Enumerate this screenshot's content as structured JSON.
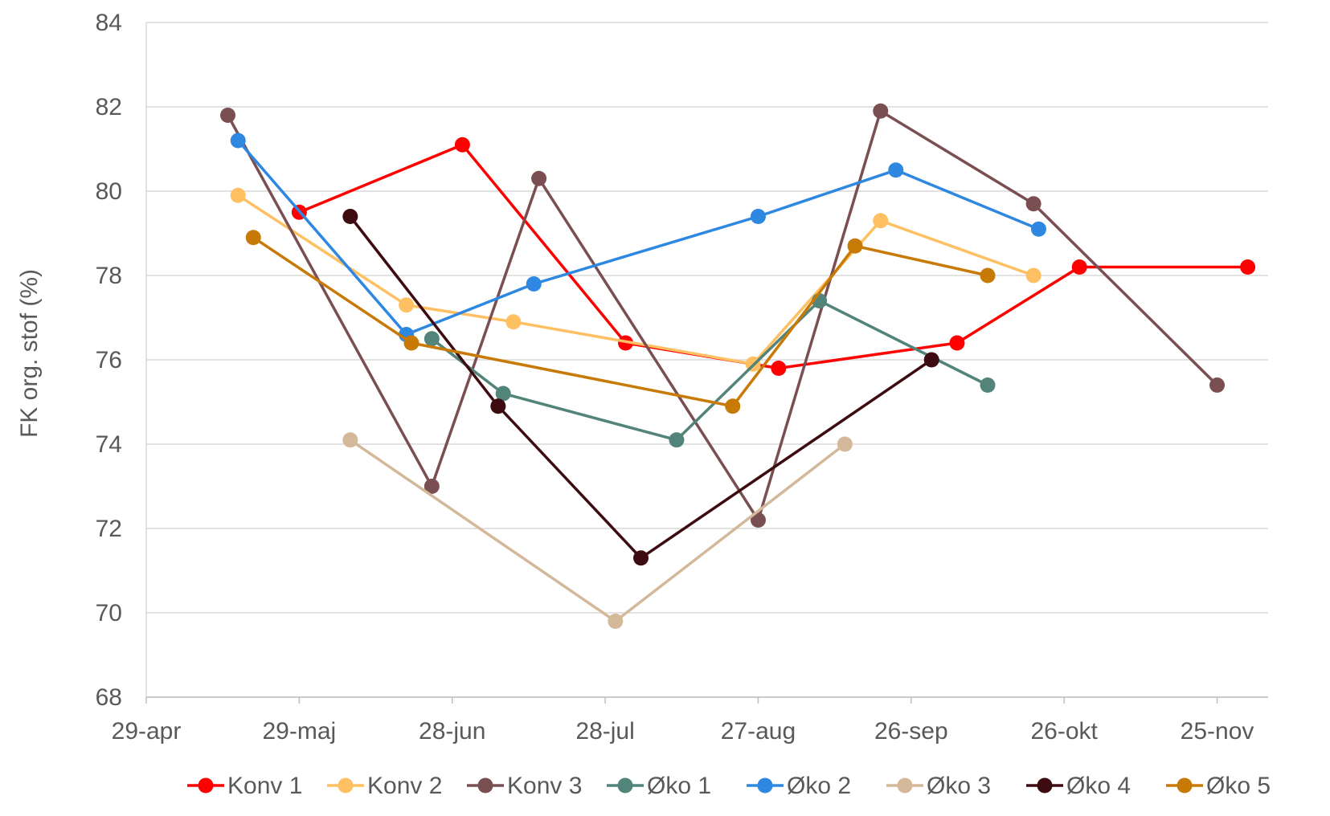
{
  "chart_data": {
    "type": "line",
    "title": "",
    "xlabel": "",
    "ylabel": "FK org. stof (%)",
    "x_tick_labels": [
      "29-apr",
      "29-maj",
      "28-jun",
      "28-jul",
      "27-aug",
      "26-sep",
      "26-okt",
      "25-nov"
    ],
    "x_ticks": [
      "2023-04-29",
      "2023-05-29",
      "2023-06-28",
      "2023-07-28",
      "2023-08-27",
      "2023-09-26",
      "2023-10-26",
      "2023-11-25"
    ],
    "xlim": [
      "2023-04-29",
      "2023-12-05"
    ],
    "ylim": [
      68,
      84
    ],
    "y_ticks": [
      68,
      70,
      72,
      74,
      76,
      78,
      80,
      82,
      84
    ],
    "grid": "horizontal",
    "legend_position": "bottom",
    "series": [
      {
        "name": "Konv 1",
        "color": "#FF0000",
        "points": [
          {
            "x": "2023-05-29",
            "y": 79.5
          },
          {
            "x": "2023-06-30",
            "y": 81.1
          },
          {
            "x": "2023-08-01",
            "y": 76.4
          },
          {
            "x": "2023-08-31",
            "y": 75.8
          },
          {
            "x": "2023-10-05",
            "y": 76.4
          },
          {
            "x": "2023-10-29",
            "y": 78.2
          },
          {
            "x": "2023-12-01",
            "y": 78.2
          }
        ]
      },
      {
        "name": "Konv 2",
        "color": "#FFC063",
        "points": [
          {
            "x": "2023-05-17",
            "y": 79.9
          },
          {
            "x": "2023-06-19",
            "y": 77.3
          },
          {
            "x": "2023-07-10",
            "y": 76.9
          },
          {
            "x": "2023-08-26",
            "y": 75.9
          },
          {
            "x": "2023-09-20",
            "y": 79.3
          },
          {
            "x": "2023-10-20",
            "y": 78.0
          }
        ]
      },
      {
        "name": "Konv 3",
        "color": "#7A4F52",
        "points": [
          {
            "x": "2023-05-15",
            "y": 81.8
          },
          {
            "x": "2023-06-24",
            "y": 73.0
          },
          {
            "x": "2023-07-15",
            "y": 80.3
          },
          {
            "x": "2023-08-27",
            "y": 72.2
          },
          {
            "x": "2023-09-20",
            "y": 81.9
          },
          {
            "x": "2023-10-20",
            "y": 79.7
          },
          {
            "x": "2023-11-25",
            "y": 75.4
          }
        ]
      },
      {
        "name": "Øko 1",
        "color": "#52847A",
        "points": [
          {
            "x": "2023-06-24",
            "y": 76.5
          },
          {
            "x": "2023-07-08",
            "y": 75.2
          },
          {
            "x": "2023-08-11",
            "y": 74.1
          },
          {
            "x": "2023-09-08",
            "y": 77.4
          },
          {
            "x": "2023-10-11",
            "y": 75.4
          }
        ]
      },
      {
        "name": "Øko 2",
        "color": "#2E87E0",
        "points": [
          {
            "x": "2023-05-17",
            "y": 81.2
          },
          {
            "x": "2023-06-19",
            "y": 76.6
          },
          {
            "x": "2023-07-14",
            "y": 77.8
          },
          {
            "x": "2023-08-27",
            "y": 79.4
          },
          {
            "x": "2023-09-23",
            "y": 80.5
          },
          {
            "x": "2023-10-21",
            "y": 79.1
          }
        ]
      },
      {
        "name": "Øko 3",
        "color": "#D4B89A",
        "points": [
          {
            "x": "2023-06-08",
            "y": 74.1
          },
          {
            "x": "2023-07-30",
            "y": 69.8
          },
          {
            "x": "2023-09-13",
            "y": 74.0
          }
        ]
      },
      {
        "name": "Øko 4",
        "color": "#3D0C11",
        "points": [
          {
            "x": "2023-06-08",
            "y": 79.4
          },
          {
            "x": "2023-07-07",
            "y": 74.9
          },
          {
            "x": "2023-08-04",
            "y": 71.3
          },
          {
            "x": "2023-09-30",
            "y": 76.0
          }
        ]
      },
      {
        "name": "Øko 5",
        "color": "#C87A06",
        "points": [
          {
            "x": "2023-05-20",
            "y": 78.9
          },
          {
            "x": "2023-06-20",
            "y": 76.4
          },
          {
            "x": "2023-08-22",
            "y": 74.9
          },
          {
            "x": "2023-09-15",
            "y": 78.7
          },
          {
            "x": "2023-10-11",
            "y": 78.0
          }
        ]
      }
    ]
  }
}
